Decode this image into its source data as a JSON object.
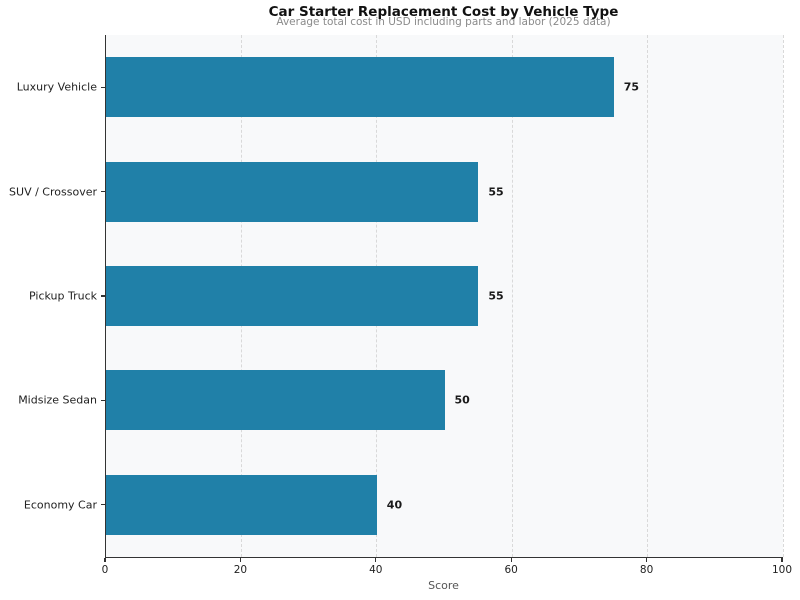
{
  "chart_data": {
    "type": "bar",
    "orientation": "horizontal",
    "title": "Car Starter Replacement Cost by Vehicle Type",
    "subtitle": "Average total cost in USD including parts and labor (2025 data)",
    "categories": [
      "Luxury Vehicle",
      "SUV / Crossover",
      "Pickup Truck",
      "Midsize Sedan",
      "Economy Car"
    ],
    "values": [
      75,
      55,
      55,
      50,
      40
    ],
    "xlabel": "Score",
    "xlim": [
      0,
      100
    ],
    "xticks": [
      0,
      20,
      40,
      60,
      80,
      100
    ],
    "grid": "vertical-dashed",
    "legend": "none",
    "colors": {
      "bar": "#2080a8",
      "plot_background": "#f8f9fa",
      "figure_background": "#ffffff",
      "axis": "#333333",
      "gridline": "#d9d9d9",
      "value_label": "#1a1a1a",
      "tick_label": "#222222",
      "subtitle": "#8a8a8a",
      "xlabel": "#555555"
    }
  }
}
